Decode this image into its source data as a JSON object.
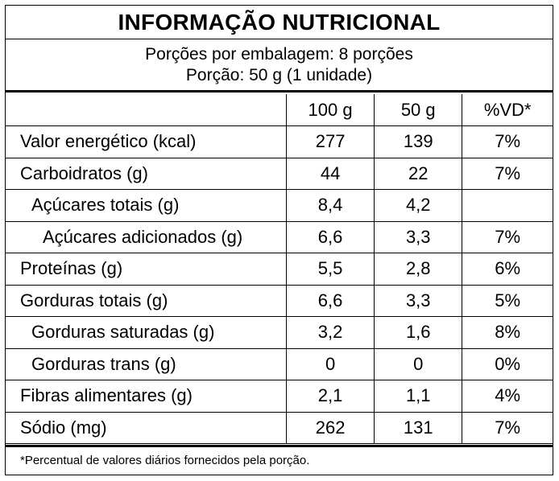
{
  "title": "INFORMAÇÃO NUTRICIONAL",
  "serving": {
    "portions": "Porções por embalagem: 8 porções",
    "portion_size": "Porção: 50 g (1 unidade)"
  },
  "table": {
    "headers": [
      "",
      "100 g",
      "50 g",
      "%VD*"
    ],
    "rows": [
      {
        "name": "Valor energético (kcal)",
        "indent": 0,
        "per100": "277",
        "per50": "139",
        "vd": "7%"
      },
      {
        "name": "Carboidratos (g)",
        "indent": 0,
        "per100": "44",
        "per50": "22",
        "vd": "7%"
      },
      {
        "name": "Açúcares totais (g)",
        "indent": 1,
        "per100": "8,4",
        "per50": "4,2",
        "vd": ""
      },
      {
        "name": "Açúcares adicionados (g)",
        "indent": 2,
        "per100": "6,6",
        "per50": "3,3",
        "vd": "7%"
      },
      {
        "name": "Proteínas (g)",
        "indent": 0,
        "per100": "5,5",
        "per50": "2,8",
        "vd": "6%"
      },
      {
        "name": "Gorduras totais (g)",
        "indent": 0,
        "per100": "6,6",
        "per50": "3,3",
        "vd": "5%"
      },
      {
        "name": "Gorduras saturadas (g)",
        "indent": 1,
        "per100": "3,2",
        "per50": "1,6",
        "vd": "8%"
      },
      {
        "name": "Gorduras trans (g)",
        "indent": 1,
        "per100": "0",
        "per50": "0",
        "vd": "0%"
      },
      {
        "name": "Fibras alimentares (g)",
        "indent": 0,
        "per100": "2,1",
        "per50": "1,1",
        "vd": "4%"
      },
      {
        "name": "Sódio (mg)",
        "indent": 0,
        "per100": "262",
        "per50": "131",
        "vd": "7%"
      }
    ]
  },
  "footnote": "*Percentual de valores diários fornecidos pela porção."
}
